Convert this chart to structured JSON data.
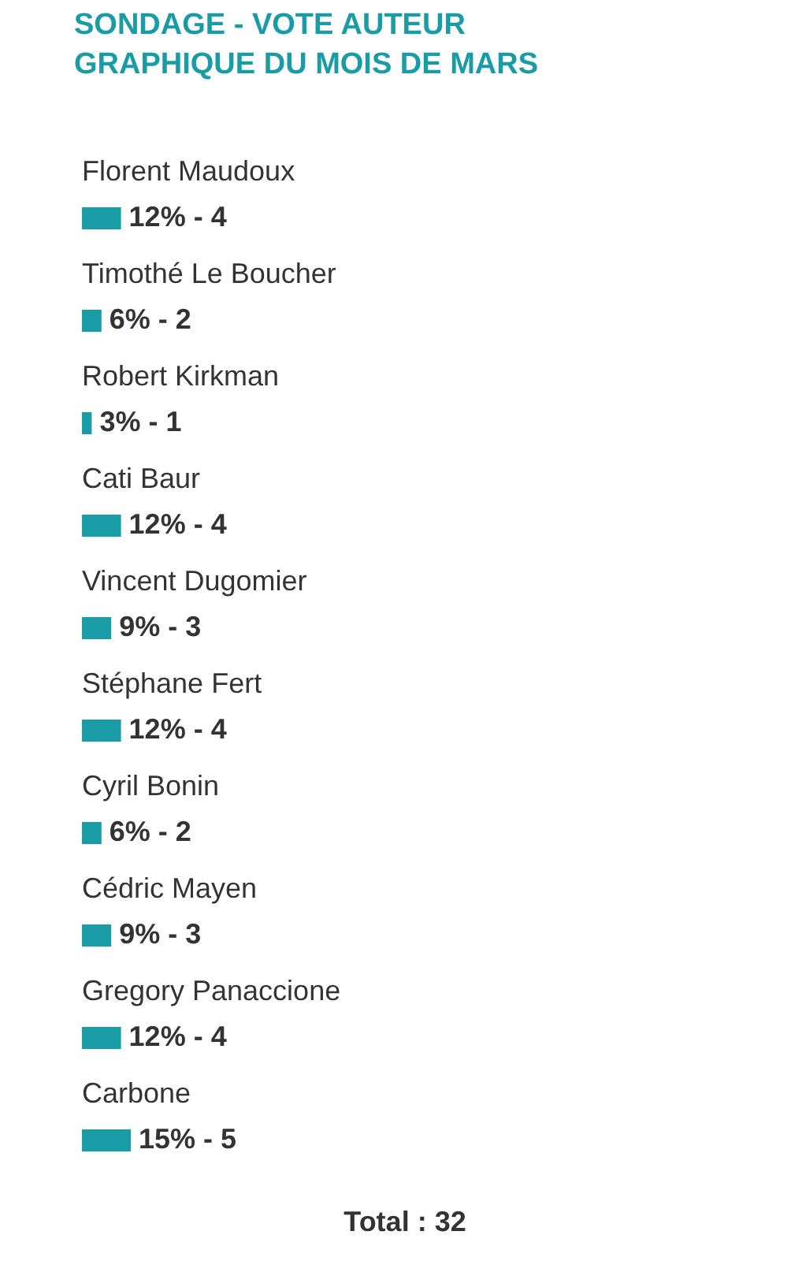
{
  "chart_data": {
    "type": "bar",
    "orientation": "horizontal",
    "title": [
      "SONDAGE - VOTE AUTEUR",
      "GRAPHIQUE DU MOIS DE MARS"
    ],
    "categories": [
      "Florent Maudoux",
      "Timothé Le Boucher",
      "Robert Kirkman",
      "Cati Baur",
      "Vincent Dugomier",
      "Stéphane Fert",
      "Cyril Bonin",
      "Cédric Mayen",
      "Gregory Panaccione",
      "Carbone"
    ],
    "values": [
      12,
      6,
      3,
      12,
      9,
      12,
      6,
      9,
      12,
      15
    ],
    "value_labels": [
      "12% - 4",
      "6% - 2",
      "3% - 1",
      "12% - 4",
      "9% - 3",
      "12% - 4",
      "6% - 2",
      "9% - 3",
      "12% - 4",
      "15% - 5"
    ],
    "color": "#1a9ca6",
    "annotations": [
      "Total : 32"
    ]
  }
}
